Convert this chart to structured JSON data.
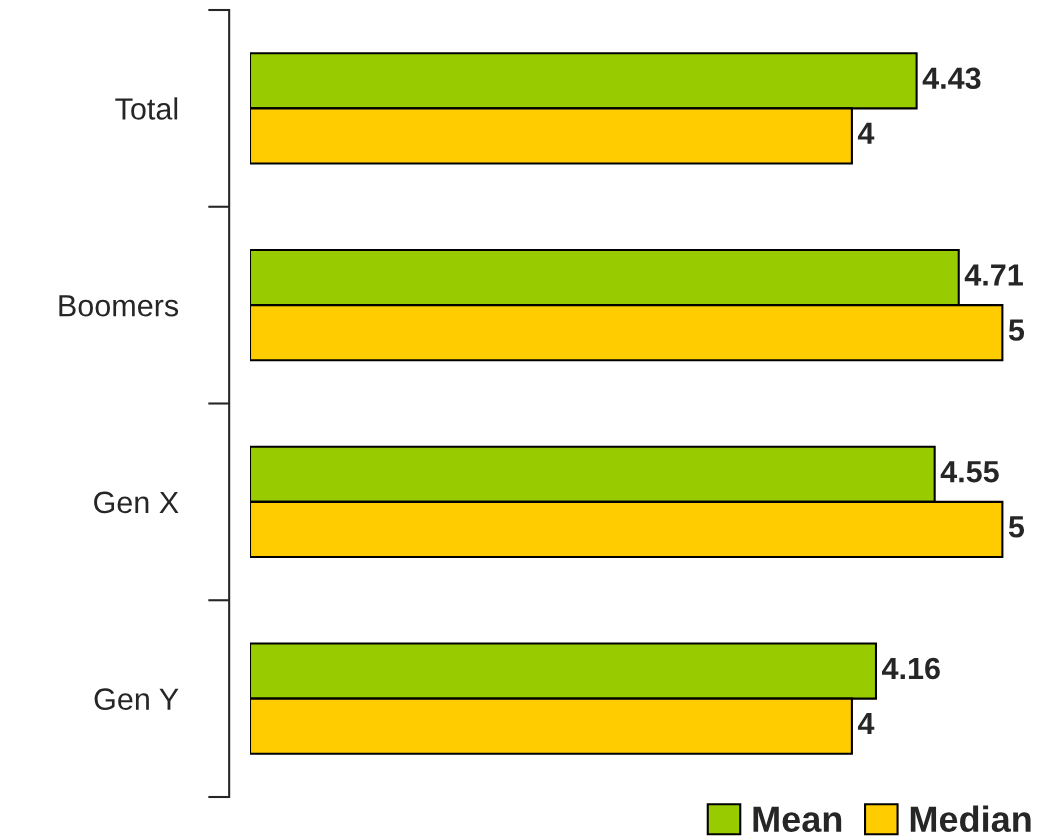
{
  "chart_data": {
    "type": "bar",
    "orientation": "horizontal",
    "categories": [
      "Total",
      "Boomers",
      "Gen X",
      "Gen Y"
    ],
    "series": [
      {
        "name": "Mean",
        "color": "#99cc00",
        "values": [
          4.43,
          4.71,
          4.55,
          4.16
        ]
      },
      {
        "name": "Median",
        "color": "#ffcc00",
        "values": [
          4,
          5,
          5,
          4
        ]
      }
    ],
    "data_labels": true,
    "legend": "bottom right",
    "grid": false
  }
}
